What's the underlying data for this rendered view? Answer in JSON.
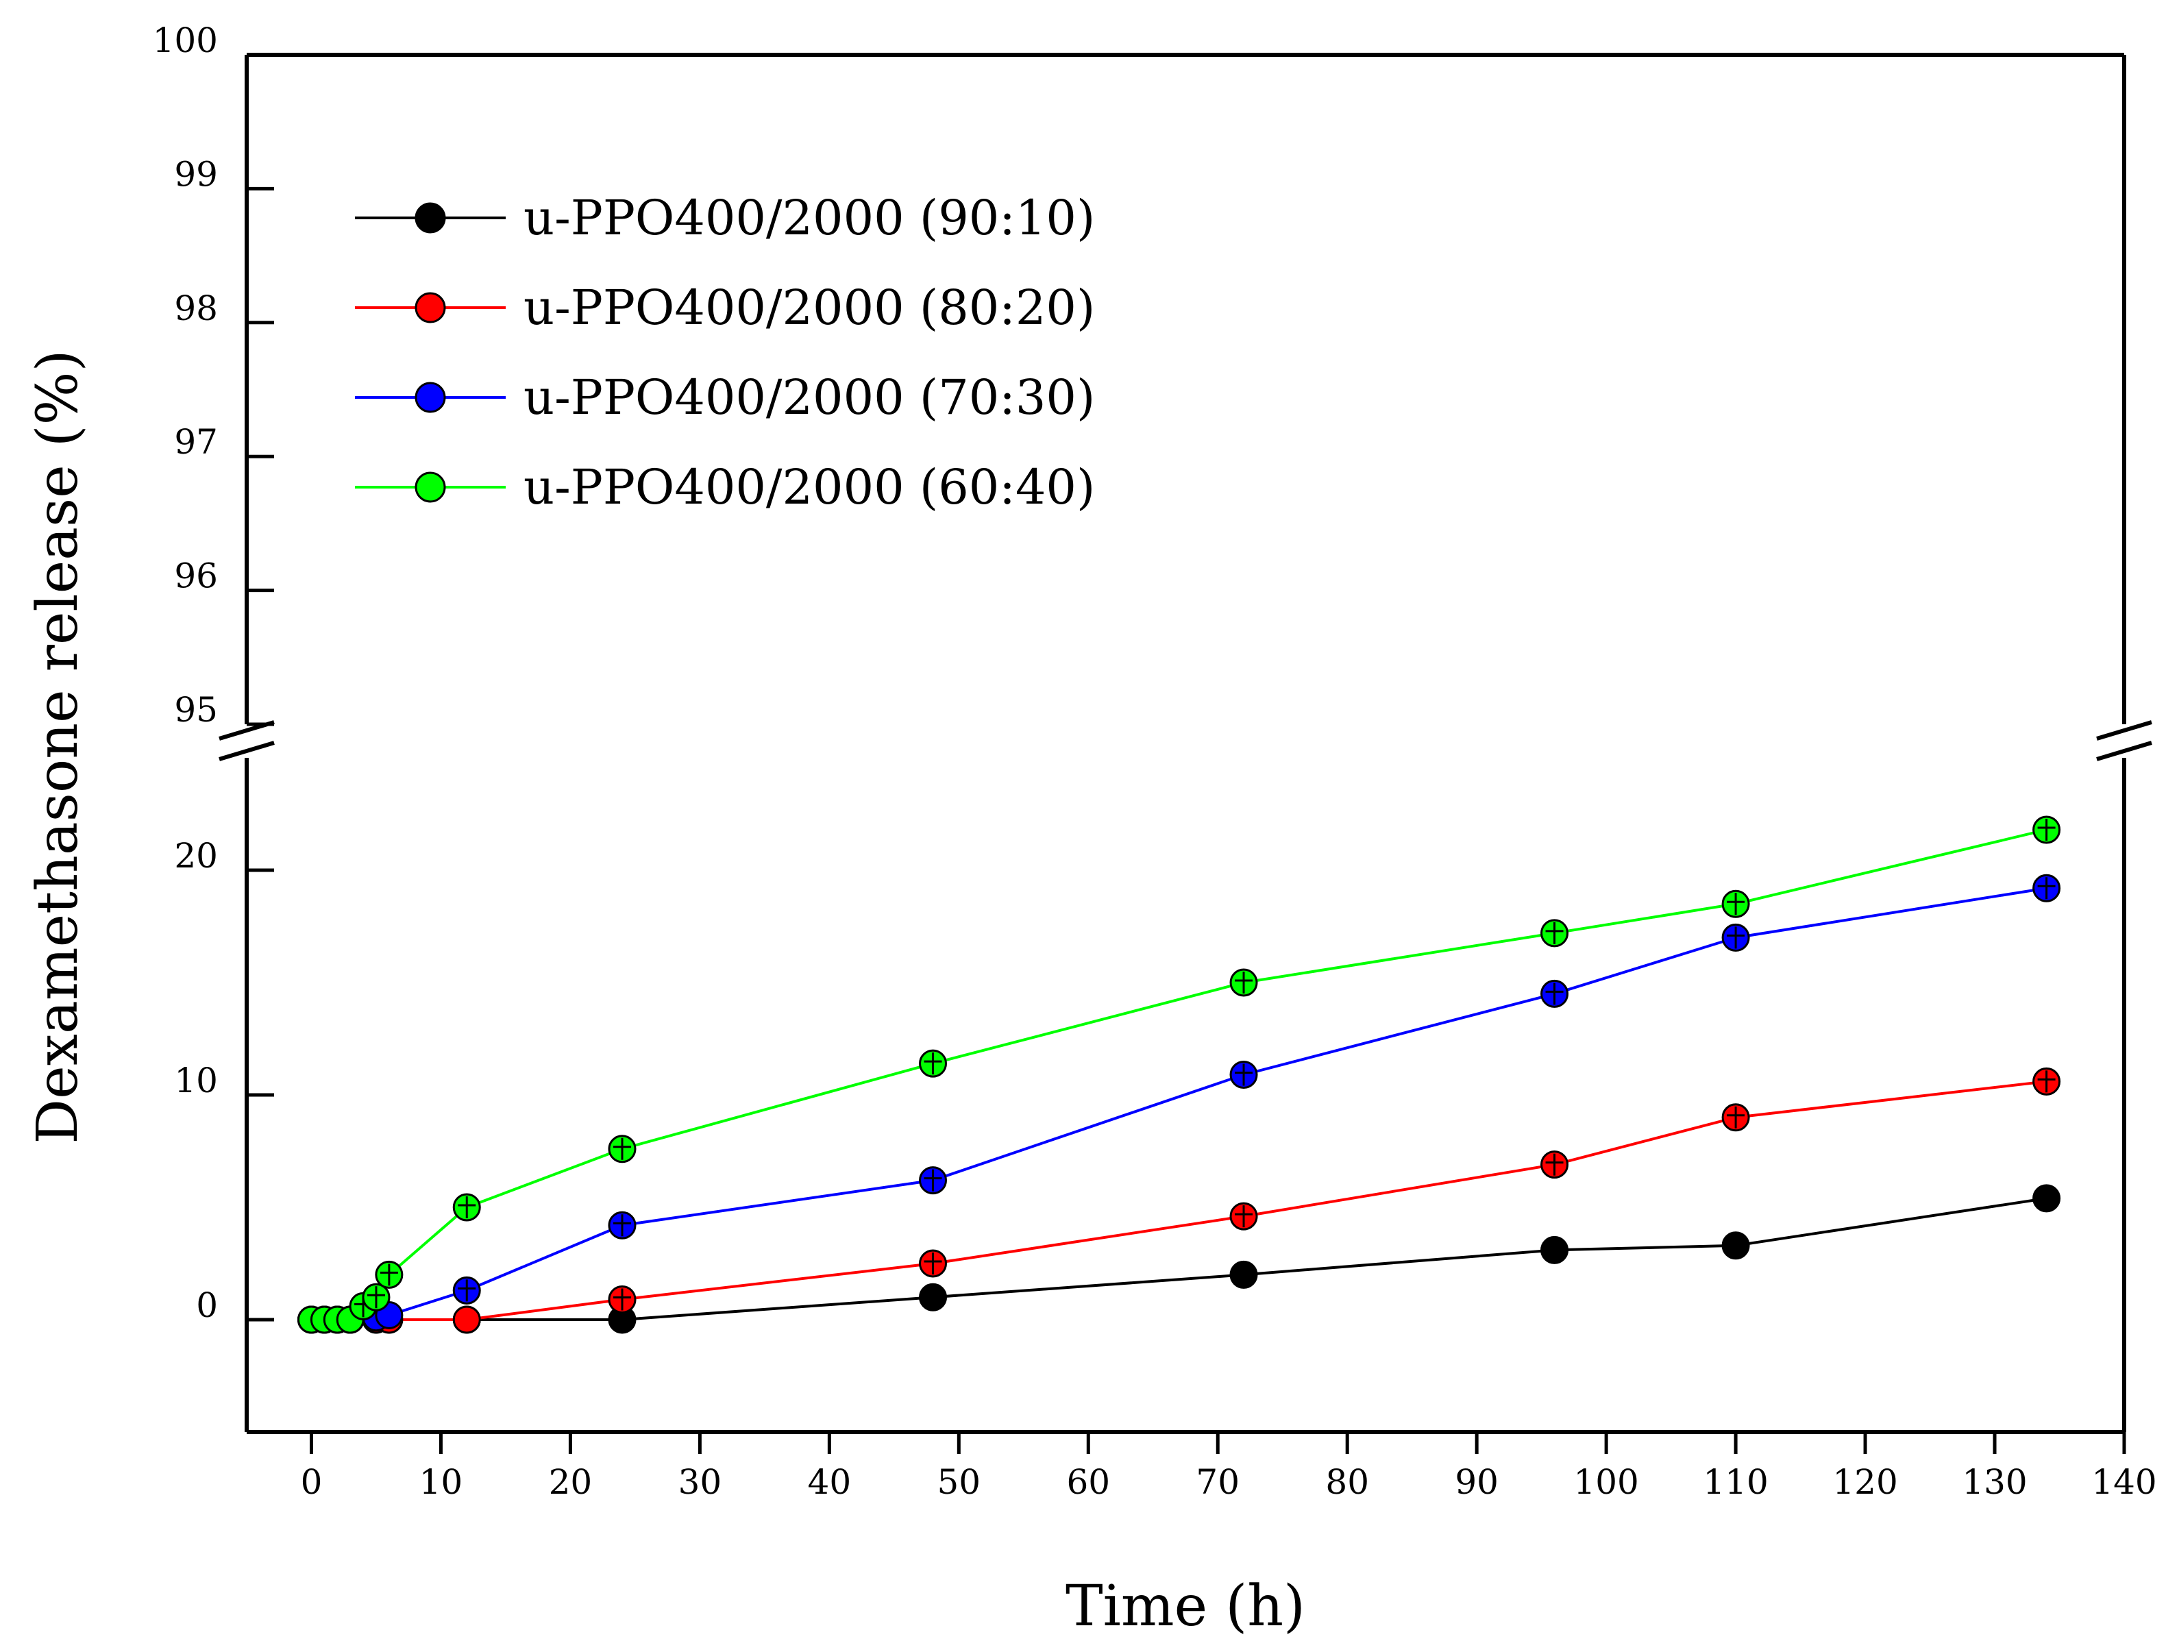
{
  "chart_data": {
    "type": "line",
    "title": "",
    "xlabel": "Time (h)",
    "ylabel": "Dexamethasone release (%)",
    "xlim": [
      -5,
      140
    ],
    "x_ticks": [
      0,
      10,
      20,
      30,
      40,
      50,
      60,
      70,
      80,
      90,
      100,
      110,
      120,
      130,
      140
    ],
    "y_lower_range": [
      -5,
      25
    ],
    "y_lower_ticks": [
      0,
      10,
      20
    ],
    "y_upper_range": [
      95,
      100
    ],
    "y_upper_ticks": [
      95,
      96,
      97,
      98,
      99,
      100
    ],
    "axis_break": true,
    "legend_position": "top-left",
    "series": [
      {
        "name": "u-PPO400/2000 (90:10)",
        "color": "#000000",
        "x": [
          0,
          1,
          2,
          3,
          5,
          6,
          12,
          24,
          48,
          72,
          96,
          110,
          134
        ],
        "values": [
          0,
          0,
          0,
          0,
          0,
          0,
          0,
          0,
          1.0,
          2.0,
          3.1,
          3.3,
          5.4
        ]
      },
      {
        "name": "u-PPO400/2000 (80:20)",
        "color": "#ff0000",
        "x": [
          0,
          1,
          2,
          3,
          5,
          6,
          12,
          24,
          48,
          72,
          96,
          110,
          134
        ],
        "values": [
          0,
          0,
          0,
          0,
          0,
          0,
          0,
          0.9,
          2.5,
          4.6,
          6.9,
          9.0,
          10.6
        ]
      },
      {
        "name": "u-PPO400/2000 (70:30)",
        "color": "#0000ff",
        "x": [
          0,
          1,
          2,
          3,
          5,
          6,
          12,
          24,
          48,
          72,
          96,
          110,
          134
        ],
        "values": [
          0,
          0,
          0,
          0,
          0.1,
          0.2,
          1.3,
          4.2,
          6.2,
          10.9,
          14.5,
          17.0,
          19.2
        ]
      },
      {
        "name": "u-PPO400/2000 (60:40)",
        "color": "#00ff00",
        "x": [
          0,
          1,
          2,
          3,
          4,
          5,
          6,
          12,
          24,
          48,
          72,
          96,
          110,
          134
        ],
        "values": [
          0,
          0,
          0,
          0,
          0.6,
          1.0,
          2.0,
          5.0,
          7.6,
          11.4,
          15.0,
          17.2,
          18.5,
          21.8
        ]
      }
    ]
  }
}
